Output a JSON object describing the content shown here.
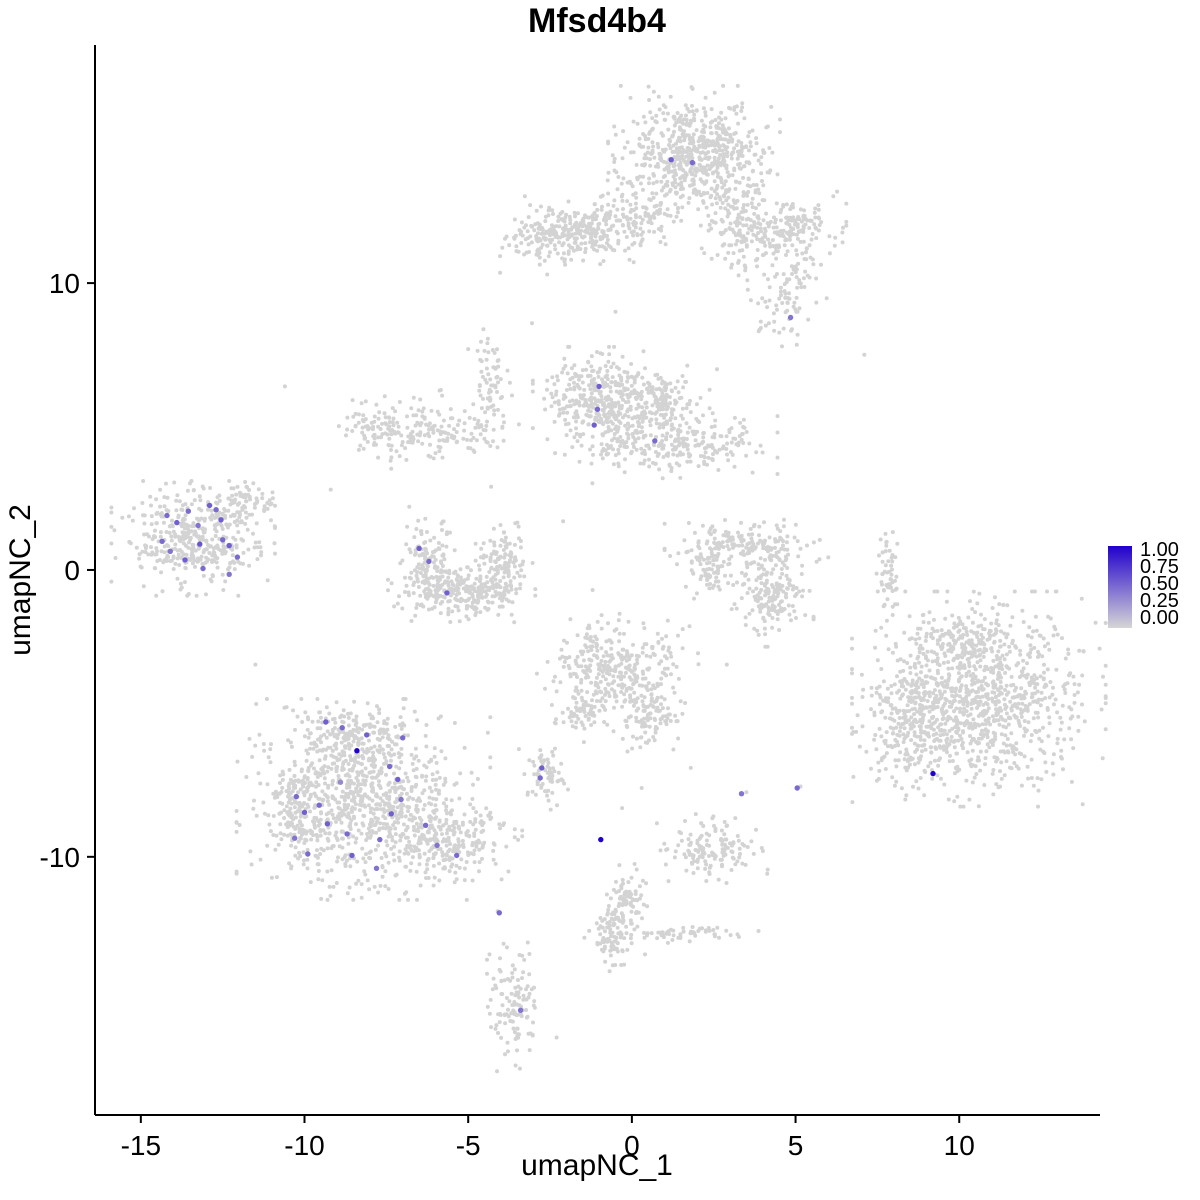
{
  "chart_data": {
    "type": "scatter",
    "title": "Mfsd4b4",
    "xlabel": "umapNC_1",
    "ylabel": "umapNC_2",
    "xlim": [
      -16.4,
      14.3
    ],
    "ylim": [
      -19.0,
      18.3
    ],
    "x_ticks": [
      -15,
      -10,
      -5,
      0,
      5,
      10
    ],
    "y_ticks": [
      10,
      0,
      -10
    ],
    "grid": false,
    "point_color_low": "#D3D3D3",
    "point_color_high": "#2100CC",
    "legend": {
      "position": "right",
      "labels": [
        "1.00",
        "0.75",
        "0.50",
        "0.25",
        "0.00"
      ],
      "high_color": "#2100CC",
      "low_color": "#D6D6D6"
    },
    "seed": 20240607,
    "background_clusters": [
      {
        "cx": 1.9,
        "cy": 14.5,
        "sx": 1.05,
        "sy": 0.95,
        "n": 620
      },
      {
        "cx": 3.2,
        "cy": 12.1,
        "sx": 0.5,
        "sy": 0.8,
        "n": 150
      },
      {
        "cx": 0.3,
        "cy": 12.4,
        "sx": 0.5,
        "sy": 0.5,
        "n": 60
      },
      {
        "cx": -1.5,
        "cy": 11.8,
        "sx": 0.95,
        "sy": 0.5,
        "n": 280
      },
      {
        "cx": -2.9,
        "cy": 11.4,
        "sx": 0.45,
        "sy": 0.45,
        "n": 70
      },
      {
        "cx": 4.8,
        "cy": 12.0,
        "sx": 0.7,
        "sy": 0.55,
        "n": 150
      },
      {
        "cx": 4.7,
        "cy": 9.8,
        "sx": 0.5,
        "sy": 0.9,
        "n": 100
      },
      {
        "cx": -0.9,
        "cy": 5.9,
        "sx": 0.85,
        "sy": 0.75,
        "n": 400
      },
      {
        "cx": 1.2,
        "cy": 4.4,
        "sx": 1.3,
        "sy": 0.55,
        "n": 280
      },
      {
        "cx": 1.0,
        "cy": 6.0,
        "sx": 0.55,
        "sy": 0.45,
        "n": 100
      },
      {
        "cx": -6.2,
        "cy": 4.9,
        "sx": 1.1,
        "sy": 0.55,
        "n": 170
      },
      {
        "cx": -4.35,
        "cy": 6.4,
        "sx": 0.25,
        "sy": 1.0,
        "n": 70
      },
      {
        "cx": -7.9,
        "cy": 5.0,
        "sx": 0.4,
        "sy": 0.35,
        "n": 50
      },
      {
        "cx": -6.2,
        "cy": 0.3,
        "sx": 0.35,
        "sy": 0.65,
        "n": 120
      },
      {
        "cx": -5.2,
        "cy": -0.7,
        "sx": 0.9,
        "sy": 0.45,
        "n": 260
      },
      {
        "cx": -3.9,
        "cy": 0.3,
        "sx": 0.35,
        "sy": 0.55,
        "n": 120
      },
      {
        "cx": -13.4,
        "cy": 1.1,
        "sx": 1.0,
        "sy": 0.8,
        "n": 420
      },
      {
        "cx": -11.7,
        "cy": 2.4,
        "sx": 0.4,
        "sy": 0.35,
        "n": 60
      },
      {
        "cx": 3.5,
        "cy": 0.8,
        "sx": 1.0,
        "sy": 0.4,
        "n": 180
      },
      {
        "cx": 4.3,
        "cy": -0.8,
        "sx": 0.5,
        "sy": 0.75,
        "n": 180
      },
      {
        "cx": 2.3,
        "cy": 0.0,
        "sx": 0.3,
        "sy": 0.4,
        "n": 60
      },
      {
        "cx": 7.85,
        "cy": 0.0,
        "sx": 0.15,
        "sy": 0.75,
        "n": 55
      },
      {
        "cx": 10.6,
        "cy": -4.5,
        "sx": 1.55,
        "sy": 1.5,
        "n": 1000
      },
      {
        "cx": 8.6,
        "cy": -5.5,
        "sx": 0.7,
        "sy": 1.0,
        "n": 200
      },
      {
        "cx": 10.1,
        "cy": -2.4,
        "sx": 0.8,
        "sy": 0.4,
        "n": 100
      },
      {
        "cx": -0.4,
        "cy": -3.4,
        "sx": 1.0,
        "sy": 0.75,
        "n": 320
      },
      {
        "cx": 0.5,
        "cy": -5.0,
        "sx": 0.45,
        "sy": 0.6,
        "n": 100
      },
      {
        "cx": -1.5,
        "cy": -5.0,
        "sx": 0.4,
        "sy": 0.4,
        "n": 60
      },
      {
        "cx": -8.2,
        "cy": -8.0,
        "sx": 1.55,
        "sy": 1.4,
        "n": 900
      },
      {
        "cx": -8.6,
        "cy": -5.9,
        "sx": 0.8,
        "sy": 0.5,
        "n": 150
      },
      {
        "cx": -5.6,
        "cy": -9.5,
        "sx": 0.9,
        "sy": 0.6,
        "n": 220
      },
      {
        "cx": -10.3,
        "cy": -8.6,
        "sx": 0.35,
        "sy": 0.7,
        "n": 90
      },
      {
        "cx": -2.7,
        "cy": -7.1,
        "sx": 0.3,
        "sy": 0.55,
        "n": 70
      },
      {
        "cx": 2.4,
        "cy": -9.7,
        "sx": 0.7,
        "sy": 0.5,
        "n": 140
      },
      {
        "cx": -0.2,
        "cy": -11.5,
        "sx": 0.3,
        "sy": 0.5,
        "n": 90
      },
      {
        "cx": -0.7,
        "cy": -12.8,
        "sx": 0.3,
        "sy": 0.5,
        "n": 80
      },
      {
        "cx": 1.7,
        "cy": -12.65,
        "sx": 0.9,
        "sy": 0.12,
        "n": 55
      },
      {
        "cx": -3.55,
        "cy": -15.1,
        "sx": 0.35,
        "sy": 0.95,
        "n": 120
      }
    ],
    "sparse_points": [
      [
        -5.0,
        7.7
      ],
      [
        -3.05,
        8.6
      ],
      [
        -0.5,
        9.0
      ],
      [
        2.6,
        7.0
      ],
      [
        7.1,
        7.5
      ],
      [
        -10.6,
        6.4
      ],
      [
        -9.2,
        2.8
      ],
      [
        -4.3,
        2.9
      ],
      [
        -2.1,
        1.7
      ],
      [
        -1.2,
        -0.7
      ],
      [
        0.3,
        -7.6
      ],
      [
        3.5,
        -7.75
      ],
      [
        5.15,
        -7.55
      ],
      [
        -4.1,
        -11.9
      ],
      [
        -4.35,
        -13.4
      ],
      [
        -2.3,
        -16.3
      ],
      [
        0.4,
        -13.4
      ],
      [
        1.1,
        -13.0
      ],
      [
        6.2,
        11.3
      ],
      [
        5.6,
        12.6
      ],
      [
        -11.5,
        -3.3
      ],
      [
        2.9,
        -3.3
      ],
      [
        1.8,
        -6.9
      ],
      [
        -0.3,
        -8.3
      ],
      [
        -12.3,
        3.1
      ],
      [
        -6.8,
        2.2
      ]
    ],
    "expressing_cells": [
      [
        1.2,
        14.3,
        0.55
      ],
      [
        1.85,
        14.2,
        0.5
      ],
      [
        4.85,
        8.8,
        0.45
      ],
      [
        -1.0,
        6.4,
        0.55
      ],
      [
        -1.05,
        5.6,
        0.5
      ],
      [
        -1.15,
        5.05,
        0.55
      ],
      [
        0.7,
        4.5,
        0.5
      ],
      [
        -6.5,
        0.75,
        0.55
      ],
      [
        -6.2,
        0.3,
        0.5
      ],
      [
        -5.65,
        -0.8,
        0.55
      ],
      [
        -14.2,
        1.9,
        0.5
      ],
      [
        -13.9,
        1.65,
        0.55
      ],
      [
        -13.55,
        2.05,
        0.5
      ],
      [
        -13.25,
        1.55,
        0.45
      ],
      [
        -12.9,
        2.25,
        0.55
      ],
      [
        -12.7,
        2.1,
        0.5
      ],
      [
        -14.35,
        1.0,
        0.5
      ],
      [
        -14.1,
        0.65,
        0.45
      ],
      [
        -13.65,
        0.35,
        0.55
      ],
      [
        -13.2,
        0.9,
        0.6
      ],
      [
        -12.5,
        1.05,
        0.5
      ],
      [
        -12.3,
        0.85,
        0.55
      ],
      [
        -12.05,
        0.45,
        0.5
      ],
      [
        -12.3,
        -0.15,
        0.45
      ],
      [
        -13.1,
        0.05,
        0.5
      ],
      [
        -12.55,
        1.75,
        0.55
      ],
      [
        9.2,
        -7.1,
        1.0
      ],
      [
        -9.35,
        -5.3,
        0.55
      ],
      [
        -8.85,
        -5.5,
        0.5
      ],
      [
        -8.1,
        -5.75,
        0.55
      ],
      [
        -8.4,
        -6.3,
        1.0
      ],
      [
        -7.4,
        -6.85,
        0.5
      ],
      [
        -7.15,
        -7.3,
        0.55
      ],
      [
        -10.25,
        -7.9,
        0.5
      ],
      [
        -10.0,
        -8.45,
        0.55
      ],
      [
        -9.55,
        -8.2,
        0.5
      ],
      [
        -9.3,
        -8.85,
        0.55
      ],
      [
        -8.7,
        -9.2,
        0.5
      ],
      [
        -10.3,
        -9.35,
        0.45
      ],
      [
        -9.9,
        -9.9,
        0.5
      ],
      [
        -8.55,
        -9.95,
        0.55
      ],
      [
        -7.7,
        -9.4,
        0.5
      ],
      [
        -7.35,
        -8.5,
        0.55
      ],
      [
        -6.3,
        -8.9,
        0.5
      ],
      [
        -5.95,
        -9.6,
        0.45
      ],
      [
        -5.35,
        -9.95,
        0.5
      ],
      [
        -7.8,
        -10.4,
        0.45
      ],
      [
        -7.0,
        -5.85,
        0.5
      ],
      [
        -8.9,
        -7.4,
        0.35
      ],
      [
        -7.05,
        -8.0,
        0.45
      ],
      [
        -2.75,
        -6.9,
        0.55
      ],
      [
        -2.8,
        -7.25,
        0.5
      ],
      [
        3.35,
        -7.8,
        0.45
      ],
      [
        5.05,
        -7.6,
        0.5
      ],
      [
        -0.95,
        -9.4,
        1.0
      ],
      [
        -4.05,
        -11.95,
        0.5
      ],
      [
        -3.4,
        -15.35,
        0.45
      ]
    ]
  }
}
